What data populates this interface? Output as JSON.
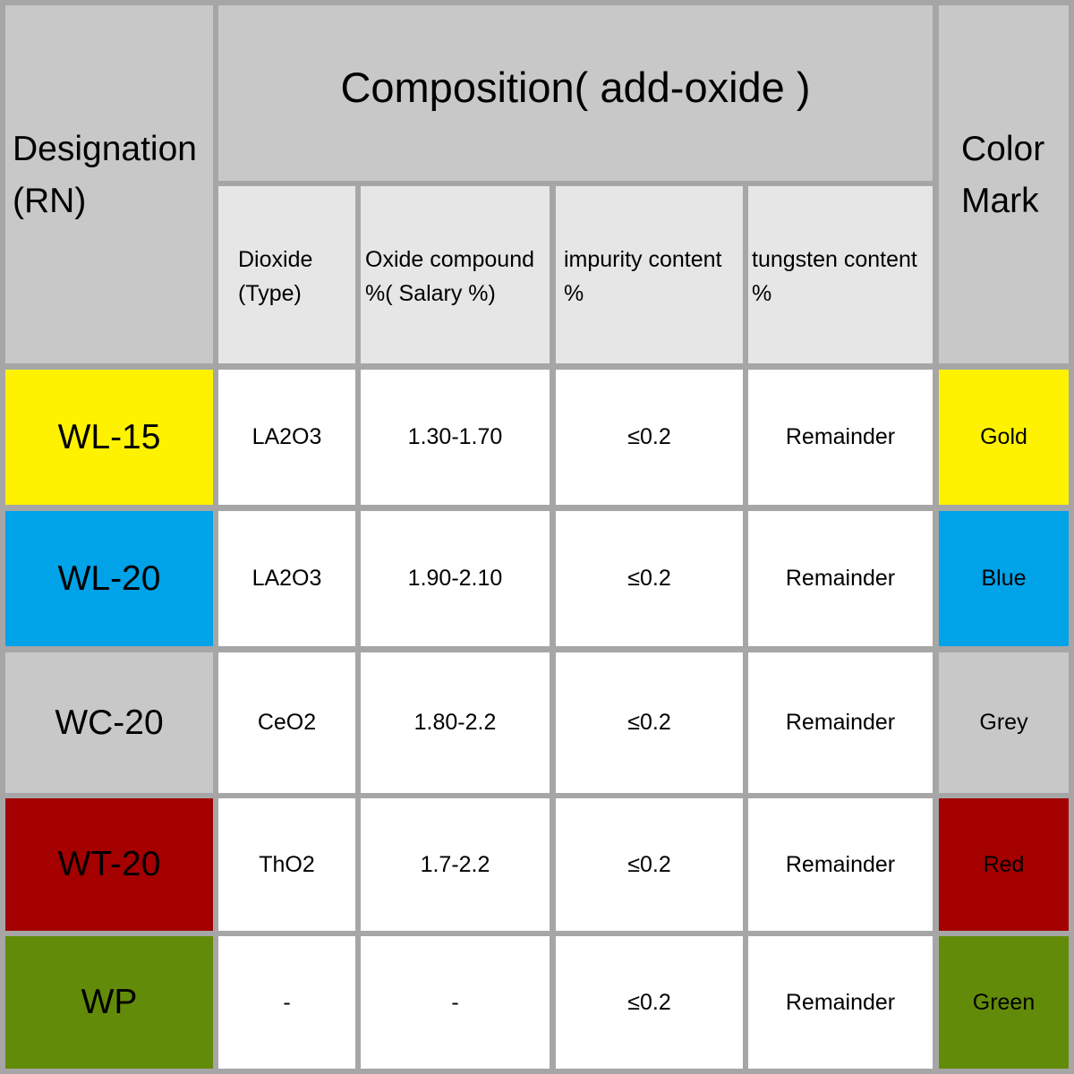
{
  "header": {
    "designation": "Designation (RN)",
    "composition": "Composition( add-oxide )",
    "color_mark": "Color Mark",
    "columns": [
      "Dioxide (Type)",
      "Oxide compound %( Salary %)",
      "impurity content %",
      "tungsten content %"
    ]
  },
  "rows": [
    {
      "designation": "WL-15",
      "dioxide": "LA2O3",
      "oxide_compound": "1.30-1.70",
      "impurity": "≤0.2",
      "tungsten": "Remainder",
      "color": "Gold",
      "color_hex": "#fff200"
    },
    {
      "designation": "WL-20",
      "dioxide": "LA2O3",
      "oxide_compound": "1.90-2.10",
      "impurity": "≤0.2",
      "tungsten": "Remainder",
      "color": "Blue",
      "color_hex": "#00a2e8"
    },
    {
      "designation": "WC-20",
      "dioxide": "CeO2",
      "oxide_compound": "1.80-2.2",
      "impurity": "≤0.2",
      "tungsten": "Remainder",
      "color": "Grey",
      "color_hex": "#c8c8c8"
    },
    {
      "designation": "WT-20",
      "dioxide": "ThO2",
      "oxide_compound": "1.7-2.2",
      "impurity": "≤0.2",
      "tungsten": "Remainder",
      "color": "Red",
      "color_hex": "#a50000"
    },
    {
      "designation": "WP",
      "dioxide": "-",
      "oxide_compound": "-",
      "impurity": "≤0.2",
      "tungsten": "Remainder",
      "color": "Green",
      "color_hex": "#638b0a"
    }
  ]
}
